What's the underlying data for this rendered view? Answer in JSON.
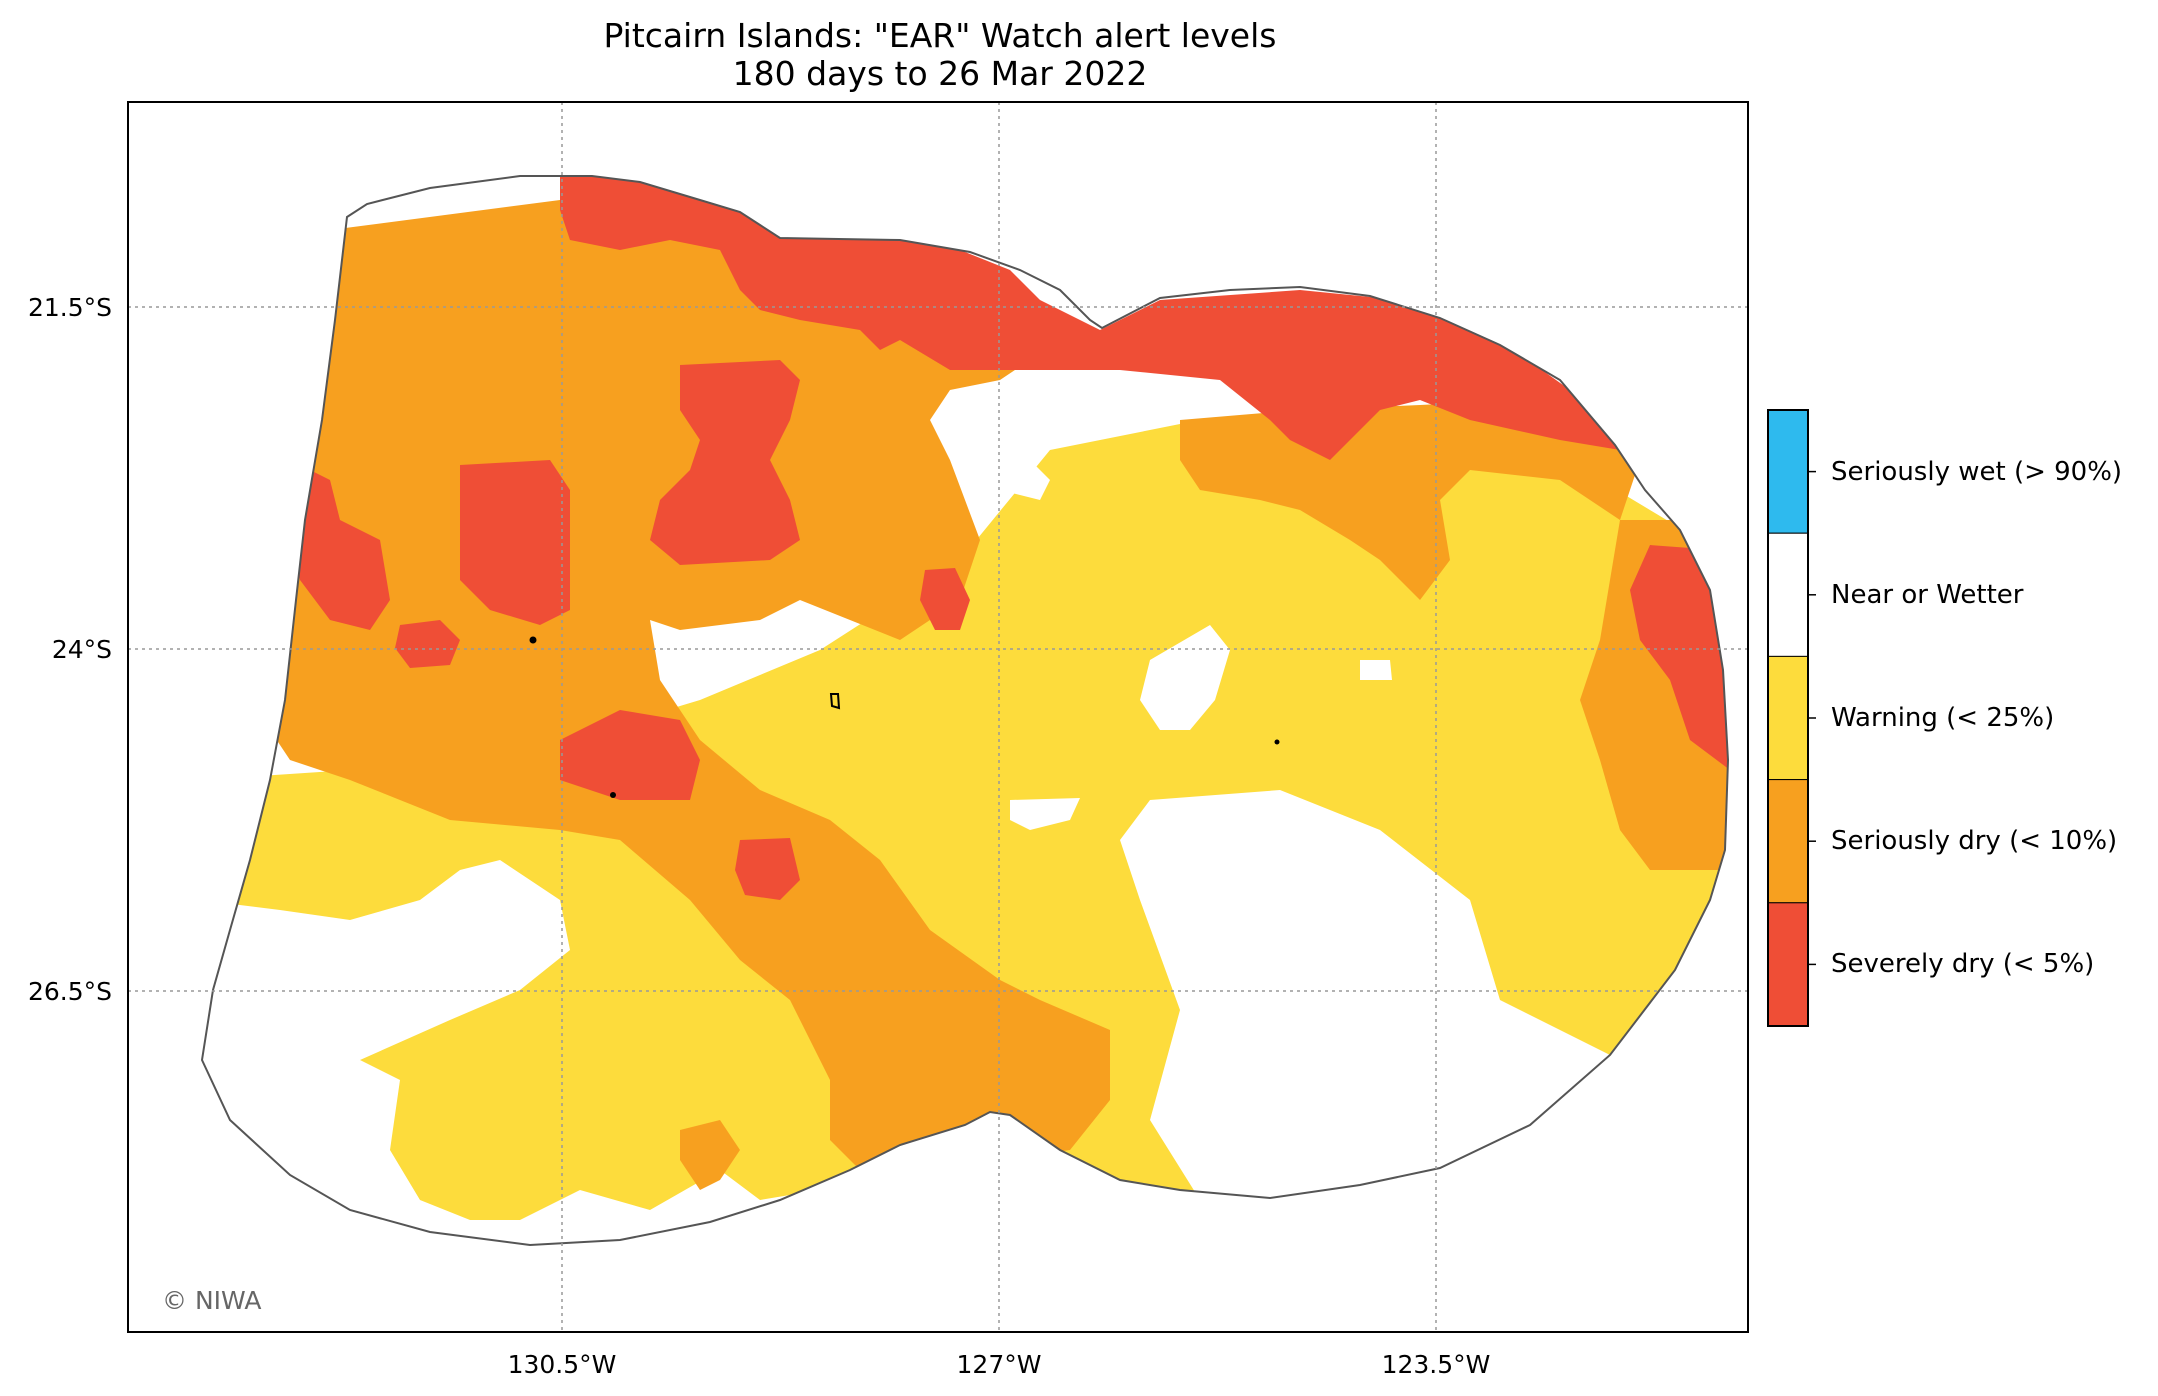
{
  "title_line1": "Pitcairn Islands: \"EAR\" Watch alert levels",
  "title_line2": "180 days to 26 Mar 2022",
  "copyright": "© NIWA",
  "axes": {
    "lon_ticks": [
      "130.5°W",
      "127°W",
      "123.5°W"
    ],
    "lat_ticks": [
      "21.5°S",
      "24°S",
      "26.5°S"
    ],
    "gridlines": true
  },
  "legend": {
    "items": [
      {
        "label": "Seriously wet (> 90%)",
        "color": "#2EBAEE"
      },
      {
        "label": "Near or Wetter",
        "color": "#FFFFFF"
      },
      {
        "label": "Warning (< 25%)",
        "color": "#FDDC3C"
      },
      {
        "label": "Seriously dry (< 10%)",
        "color": "#F7A01F"
      },
      {
        "label": "Severely dry (< 5%)",
        "color": "#EF4E36"
      }
    ]
  },
  "colors": {
    "severely_dry": "#EF4E36",
    "seriously_dry": "#F7A01F",
    "warning": "#FDDC3C",
    "near": "#FFFFFF",
    "outline": "#555555"
  }
}
